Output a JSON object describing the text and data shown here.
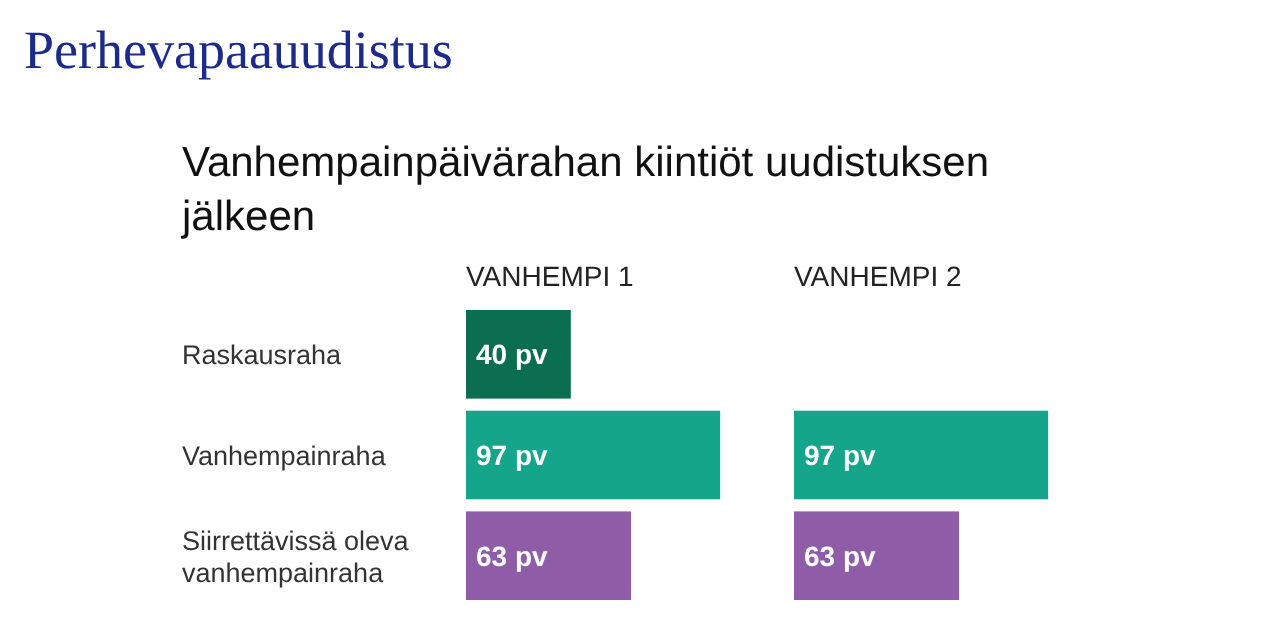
{
  "chart_data": [
    {
      "type": "bar",
      "orientation": "horizontal",
      "title": "Perhevapaauudistus",
      "subtitle": "Vanhempainpäivärahan kiintiöt uudistuksen jälkeen",
      "annotations": [
        "VANHEMPI 1"
      ],
      "categories": [
        "Raskausraha",
        "Vanhempainraha",
        "Siirrettävissä oleva vanhempainraha"
      ],
      "values": [
        40,
        97,
        63
      ],
      "colors": [
        "#0b6e4f",
        "#14a58a",
        "#8f5da8"
      ],
      "value_labels": [
        "40 pv",
        "97 pv",
        "63 pv"
      ]
    },
    {
      "type": "bar",
      "orientation": "horizontal",
      "annotations": [
        "VANHEMPI 2"
      ],
      "categories": [
        null,
        null,
        null
      ],
      "values": [
        null,
        97,
        63
      ],
      "colors": [
        null,
        "#14a58a",
        "#8f5da8"
      ],
      "value_labels": [
        null,
        "97 pv",
        "63 pv"
      ]
    }
  ]
}
